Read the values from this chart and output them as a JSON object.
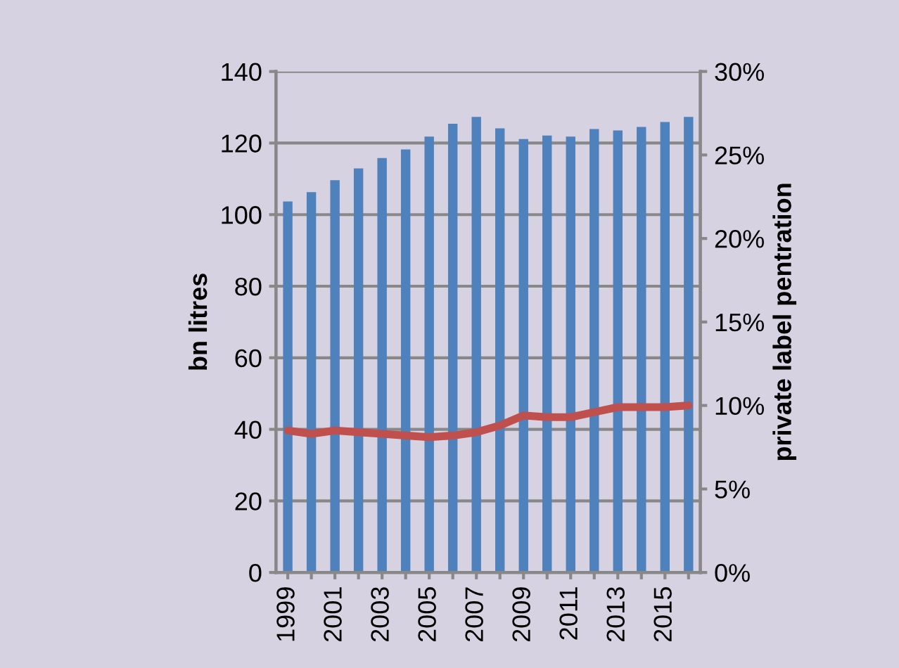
{
  "chart_data": {
    "type": "bar",
    "ylabel": "bn litres",
    "y2label": "private label pentration",
    "categories": [
      "1999",
      null,
      "2001",
      null,
      "2003",
      null,
      "2005",
      null,
      "2007",
      null,
      "2009",
      null,
      "2011",
      null,
      "2013",
      null,
      "2015",
      null
    ],
    "series": [
      {
        "color": "#4f81bd",
        "values": [
          103.7,
          106.3,
          109.6,
          112.9,
          115.8,
          118.2,
          121.8,
          125.4,
          127.3,
          124.1,
          121.1,
          122.1,
          121.8,
          123.9,
          123.5,
          124.5,
          125.9,
          127.3
        ]
      },
      {
        "type": "line",
        "axis": "y2",
        "color": "#c0504d",
        "values": [
          8.5,
          8.3,
          8.5,
          8.4,
          8.3,
          8.2,
          8.1,
          8.2,
          8.4,
          8.8,
          9.4,
          9.3,
          9.3,
          9.6,
          9.9,
          9.9,
          9.9,
          10.0
        ]
      }
    ],
    "ylim": [
      0,
      140
    ],
    "yticks": [
      0,
      20,
      40,
      60,
      80,
      100,
      120,
      140
    ],
    "y2lim": [
      0,
      30
    ],
    "y2ticks": [
      {
        "value": 0,
        "label": "0%"
      },
      {
        "value": 5,
        "label": "5%"
      },
      {
        "value": 10,
        "label": "10%"
      },
      {
        "value": 15,
        "label": "15%"
      },
      {
        "value": 20,
        "label": "20%"
      },
      {
        "value": 25,
        "label": "25%"
      },
      {
        "value": 30,
        "label": "30%"
      }
    ],
    "grid": "y"
  }
}
